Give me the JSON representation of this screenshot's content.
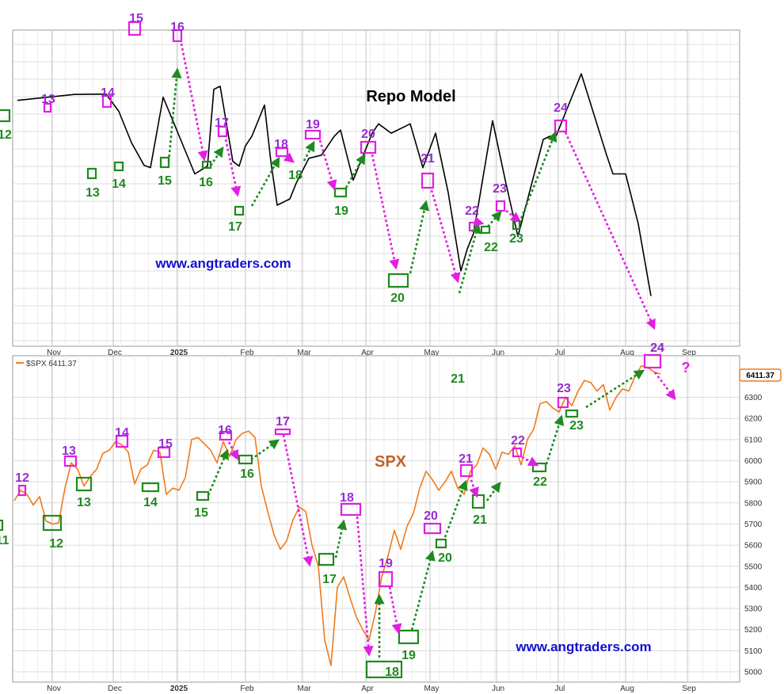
{
  "colors": {
    "peak": "#e21ee2",
    "trough": "#1f8a1f",
    "peak_label": "#9a2bd4",
    "trough_label": "#1f8a1f",
    "repo_line": "#000000",
    "spx_line": "#f07a1a",
    "url": "#1010d0",
    "grid": "#dcdcdc"
  },
  "chart_data": [
    {
      "type": "line",
      "title": "Repo Model",
      "watermark": "www.angtraders.com",
      "x_tick_labels": [
        "Nov",
        "Dec",
        "2025",
        "Feb",
        "Mar",
        "Apr",
        "May",
        "Jun",
        "Jul",
        "Aug",
        "Sep"
      ],
      "y_range": [
        0,
        100
      ],
      "series": [
        {
          "name": "Repo Model",
          "x": [
            0,
            9,
            14,
            16,
            18,
            20,
            21,
            23,
            28,
            30,
            31,
            32,
            34,
            35,
            36,
            37,
            39,
            40,
            41,
            43,
            44,
            46,
            48,
            50,
            51,
            53,
            56,
            57,
            59,
            61,
            62,
            64,
            66,
            68,
            70,
            71,
            72,
            75,
            77,
            79,
            83,
            84,
            85,
            89,
            93,
            94,
            96,
            98,
            100
          ],
          "y": [
            73.5,
            75.4,
            75.5,
            70,
            60,
            52.7,
            52,
            74.5,
            50,
            52.5,
            77,
            78,
            54,
            52.5,
            59,
            62,
            72,
            54,
            40,
            42,
            47,
            55,
            56,
            62,
            64,
            48,
            63,
            66,
            63,
            65,
            66,
            52,
            63,
            44,
            19,
            26,
            31,
            67,
            48,
            30,
            61,
            62,
            62,
            82,
            56,
            50,
            50,
            34,
            11
          ]
        }
      ],
      "markers": [
        {
          "label": "12",
          "kind": "trough"
        },
        {
          "label": "13",
          "kind": "peak"
        },
        {
          "label": "13",
          "kind": "trough"
        },
        {
          "label": "14",
          "kind": "peak"
        },
        {
          "label": "14",
          "kind": "trough"
        },
        {
          "label": "15",
          "kind": "peak"
        },
        {
          "label": "15",
          "kind": "trough"
        },
        {
          "label": "16",
          "kind": "peak"
        },
        {
          "label": "16",
          "kind": "trough"
        },
        {
          "label": "17",
          "kind": "peak"
        },
        {
          "label": "17",
          "kind": "trough"
        },
        {
          "label": "18",
          "kind": "peak"
        },
        {
          "label": "18",
          "kind": "trough"
        },
        {
          "label": "19",
          "kind": "peak"
        },
        {
          "label": "19",
          "kind": "trough"
        },
        {
          "label": "20",
          "kind": "peak"
        },
        {
          "label": "20",
          "kind": "trough"
        },
        {
          "label": "21",
          "kind": "peak"
        },
        {
          "label": "22",
          "kind": "peak"
        },
        {
          "label": "22",
          "kind": "trough"
        },
        {
          "label": "23",
          "kind": "peak"
        },
        {
          "label": "23",
          "kind": "trough"
        },
        {
          "label": "24",
          "kind": "peak"
        },
        {
          "label": "24",
          "kind": "trough"
        }
      ]
    },
    {
      "type": "line",
      "title": "SPX",
      "legend": "$SPX 6411.37",
      "last_value_tag": "6411.37",
      "question_mark": "?",
      "watermark": "www.angtraders.com",
      "x_tick_labels": [
        "Nov",
        "Dec",
        "2025",
        "Feb",
        "Mar",
        "Apr",
        "May",
        "Jun",
        "Jul",
        "Aug",
        "Sep"
      ],
      "y_tick_labels": [
        "6300",
        "6200",
        "6100",
        "6000",
        "5900",
        "5800",
        "5700",
        "5600",
        "5500",
        "5400",
        "5300",
        "5200",
        "5100",
        "5000"
      ],
      "ylim": [
        4970,
        6470
      ],
      "series": [
        {
          "name": "$SPX",
          "x": [
            0,
            1,
            2,
            3,
            4,
            5,
            6,
            7,
            8,
            9,
            10,
            11,
            12,
            13,
            14,
            15,
            16,
            17,
            18,
            19,
            20,
            21,
            22,
            23,
            24,
            25,
            26,
            27,
            28,
            29,
            30,
            31,
            32,
            33,
            34,
            35,
            36,
            37,
            38,
            39,
            40,
            41,
            42,
            43,
            44,
            45,
            46,
            47,
            48,
            49,
            50,
            51,
            52,
            53,
            54,
            55,
            56,
            57,
            58,
            59,
            60,
            61,
            62,
            63,
            64,
            65,
            66,
            67,
            68,
            69,
            70,
            71,
            72,
            73,
            74,
            75,
            76,
            77,
            78,
            79,
            80,
            81,
            82,
            83,
            84,
            85,
            86,
            87,
            88,
            89,
            90,
            91,
            92,
            93,
            94,
            95,
            96,
            97,
            98,
            99,
            100,
            101,
            102
          ],
          "y": [
            5810,
            5860,
            5840,
            5790,
            5830,
            5715,
            5700,
            5705,
            5870,
            5990,
            5960,
            5880,
            5925,
            5960,
            6035,
            6050,
            6090,
            6075,
            6040,
            5890,
            5960,
            5980,
            6050,
            6040,
            5840,
            5870,
            5860,
            5920,
            6100,
            6110,
            6080,
            6050,
            5990,
            6090,
            6020,
            6100,
            6130,
            6140,
            6110,
            5880,
            5760,
            5650,
            5580,
            5620,
            5720,
            5780,
            5760,
            5600,
            5500,
            5150,
            5030,
            5400,
            5450,
            5350,
            5260,
            5200,
            5150,
            5280,
            5450,
            5550,
            5670,
            5580,
            5690,
            5750,
            5870,
            5950,
            5910,
            5860,
            5900,
            5950,
            5870,
            5840,
            5950,
            5980,
            6060,
            6030,
            5960,
            6040,
            6030,
            6070,
            5980,
            6100,
            6150,
            6270,
            6280,
            6250,
            6230,
            6300,
            6260,
            6330,
            6380,
            6370,
            6330,
            6360,
            6240,
            6300,
            6340,
            6330,
            6400,
            6450,
            6440,
            6420,
            6411
          ]
        }
      ],
      "markers": [
        {
          "label": "11",
          "kind": "trough"
        },
        {
          "label": "12",
          "kind": "peak"
        },
        {
          "label": "12",
          "kind": "trough"
        },
        {
          "label": "13",
          "kind": "peak"
        },
        {
          "label": "13",
          "kind": "trough"
        },
        {
          "label": "14",
          "kind": "peak"
        },
        {
          "label": "14",
          "kind": "trough"
        },
        {
          "label": "15",
          "kind": "peak"
        },
        {
          "label": "15",
          "kind": "trough"
        },
        {
          "label": "16",
          "kind": "peak"
        },
        {
          "label": "16",
          "kind": "trough"
        },
        {
          "label": "17",
          "kind": "peak"
        },
        {
          "label": "17",
          "kind": "trough"
        },
        {
          "label": "18",
          "kind": "peak"
        },
        {
          "label": "18",
          "kind": "trough"
        },
        {
          "label": "19",
          "kind": "peak"
        },
        {
          "label": "19",
          "kind": "trough"
        },
        {
          "label": "20",
          "kind": "peak"
        },
        {
          "label": "20",
          "kind": "trough"
        },
        {
          "label": "21",
          "kind": "peak"
        },
        {
          "label": "21",
          "kind": "trough"
        },
        {
          "label": "21",
          "kind": "note"
        },
        {
          "label": "22",
          "kind": "peak"
        },
        {
          "label": "22",
          "kind": "trough"
        },
        {
          "label": "23",
          "kind": "peak"
        },
        {
          "label": "23",
          "kind": "trough"
        },
        {
          "label": "24",
          "kind": "peak"
        }
      ]
    }
  ]
}
